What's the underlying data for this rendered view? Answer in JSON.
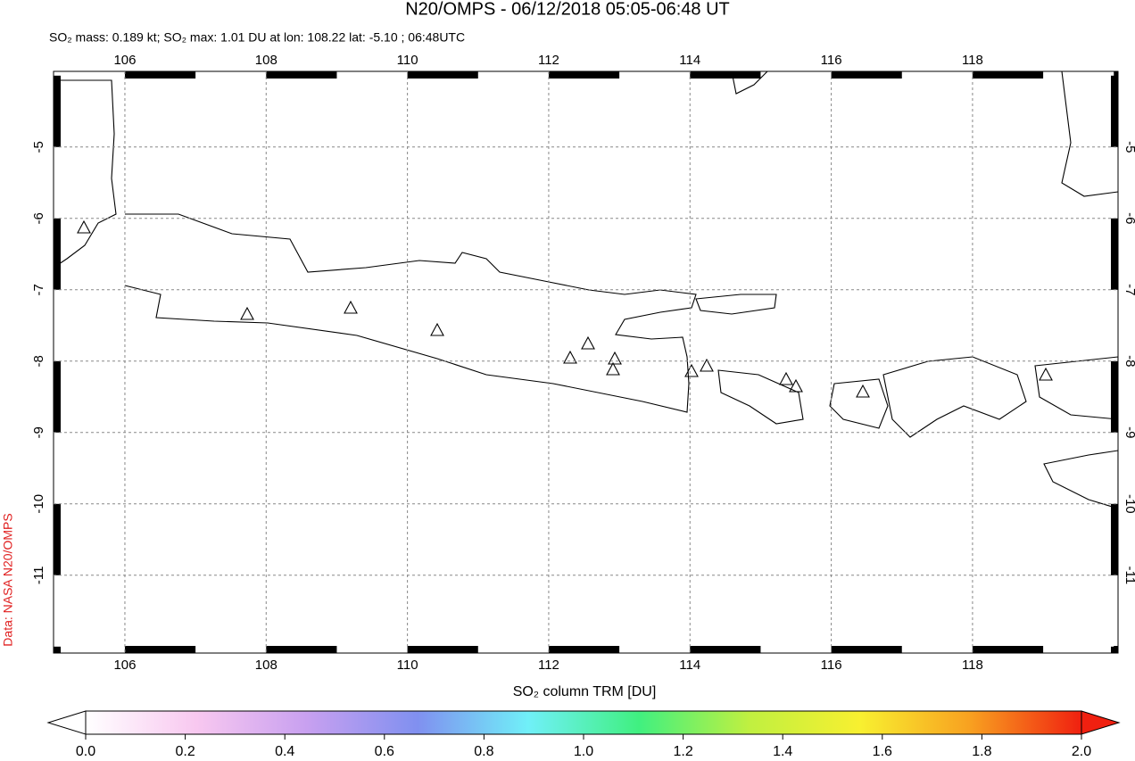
{
  "title": "N20/OMPS - 06/12/2018 05:05-06:48 UT",
  "subtitle": "SO₂ mass: 0.189 kt; SO₂ max: 1.01 DU at lon: 108.22 lat: -5.10 ; 06:48UTC",
  "side_label": "Data: NASA N20/OMPS",
  "map": {
    "xlim": [
      104.99,
      120.06
    ],
    "ylim": [
      -12.09,
      -3.94
    ],
    "xticks": [
      106,
      108,
      110,
      112,
      114,
      116,
      118
    ],
    "yticks": [
      -5,
      -6,
      -7,
      -8,
      -9,
      -10,
      -11
    ]
  },
  "colorbar": {
    "label": "SO₂ column TRM [DU]",
    "lim": [
      0,
      2
    ],
    "ticks": [
      {
        "value": 0,
        "label": "0.0"
      },
      {
        "value": 0.2,
        "label": "0.2"
      },
      {
        "value": 0.4,
        "label": "0.4"
      },
      {
        "value": 0.6,
        "label": "0.6"
      },
      {
        "value": 0.8,
        "label": "0.8"
      },
      {
        "value": 1,
        "label": "1.0"
      },
      {
        "value": 1.2,
        "label": "1.2"
      },
      {
        "value": 1.4,
        "label": "1.4"
      },
      {
        "value": 1.6,
        "label": "1.6"
      },
      {
        "value": 1.8,
        "label": "1.8"
      },
      {
        "value": 2,
        "label": "2.0"
      }
    ],
    "colormap": [
      "#ffffff",
      "#f8c8f0",
      "#c8a0f0",
      "#8090f0",
      "#70f0f8",
      "#40f080",
      "#c0f040",
      "#f8f030",
      "#f8a020",
      "#f02010"
    ]
  }
}
